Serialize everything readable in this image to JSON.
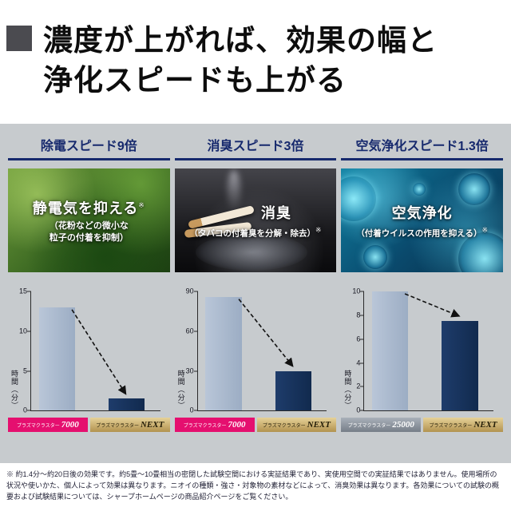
{
  "header": {
    "line1": "濃度が上がれば、効果の幅と",
    "line2": "浄化スピードも上がる"
  },
  "columns": [
    {
      "title": "除電スピード9倍",
      "photo": {
        "headline": "静電気を抑える",
        "headline_note": "※",
        "sub_lines": [
          "（花粉などの微小な",
          "粒子の付着を抑制）"
        ],
        "sub_note": ""
      }
    },
    {
      "title": "消臭スピード3倍",
      "photo": {
        "headline": "消臭",
        "headline_note": "",
        "sub_lines": [
          "（タバコの付着臭を分解・除去）",
          ""
        ],
        "sub_note": "※"
      }
    },
    {
      "title": "空気浄化スピード1.3倍",
      "photo": {
        "headline": "空気浄化",
        "headline_note": "",
        "sub_lines": [
          "（付着ウイルスの作用を抑える）",
          ""
        ],
        "sub_note": "※"
      }
    }
  ],
  "chart_data": [
    {
      "type": "bar",
      "title": "除電スピード9倍",
      "ylabel": "時間（分）",
      "ylim": [
        0,
        15
      ],
      "yticks": [
        0,
        5,
        10,
        15
      ],
      "categories": [
        "プラズマクラスター7000",
        "プラズマクラスターNEXT"
      ],
      "values": [
        13,
        1.5
      ],
      "bars": [
        {
          "brand": "プラズマクラスター",
          "model": "7000",
          "style": "pink",
          "value": 13
        },
        {
          "brand": "プラズマクラスター",
          "model": "NEXT",
          "style": "gold",
          "value": 1.5
        }
      ]
    },
    {
      "type": "bar",
      "title": "消臭スピード3倍",
      "ylabel": "時間（分）",
      "ylim": [
        0,
        90
      ],
      "yticks": [
        0,
        30,
        60,
        90
      ],
      "categories": [
        "プラズマクラスター7000",
        "プラズマクラスターNEXT"
      ],
      "values": [
        86,
        30
      ],
      "bars": [
        {
          "brand": "プラズマクラスター",
          "model": "7000",
          "style": "pink",
          "value": 86
        },
        {
          "brand": "プラズマクラスター",
          "model": "NEXT",
          "style": "gold",
          "value": 30
        }
      ]
    },
    {
      "type": "bar",
      "title": "空気浄化スピード1.3倍",
      "ylabel": "時間（分）",
      "ylim": [
        0,
        10
      ],
      "yticks": [
        0,
        2,
        4,
        6,
        8,
        10
      ],
      "categories": [
        "プラズマクラスター25000",
        "プラズマクラスターNEXT"
      ],
      "values": [
        10,
        7.5
      ],
      "bars": [
        {
          "brand": "プラズマクラスター",
          "model": "25000",
          "style": "silver",
          "value": 10
        },
        {
          "brand": "プラズマクラスター",
          "model": "NEXT",
          "style": "gold",
          "value": 7.5
        }
      ]
    }
  ],
  "colors": {
    "accent_navy": "#16296d",
    "badge_pink": "#e50f6f",
    "badge_gold": "#b2924f",
    "bar_light": "#a9b9cf",
    "bar_dark": "#16315e",
    "background_gray": "#c7cbce"
  },
  "footnote": {
    "mark": "※",
    "text": "約1.4分～約20日後の効果です。約5畳～10畳相当の密閉した試験空間における実証結果であり、実使用空間での実証結果ではありません。使用場所の状況や使いかた、個人によって効果は異なります。ニオイの種類・強さ・対象物の素材などによって、消臭効果は異なります。各効果についての試験の概要および試験結果については、シャープホームページの商品紹介ページをご覧ください。"
  }
}
